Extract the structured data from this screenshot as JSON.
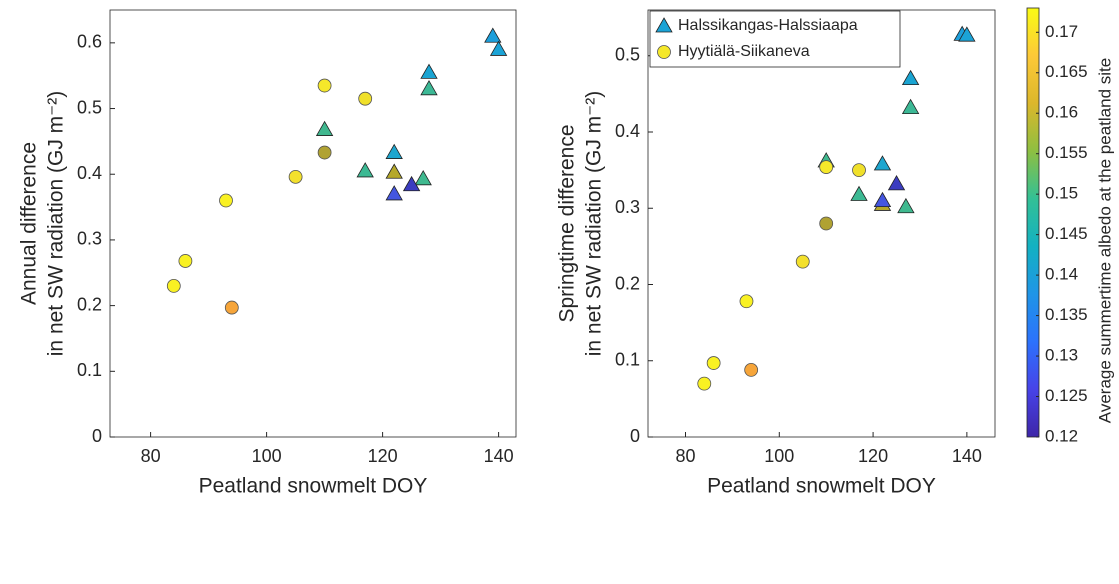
{
  "chart_data": [
    {
      "type": "scatter",
      "xlabel": "Peatland snowmelt DOY",
      "ylabel": [
        "Annual difference",
        "in net SW radiation (GJ m⁻²)"
      ],
      "xlim": [
        73,
        143
      ],
      "xticks": [
        80,
        100,
        120,
        140
      ],
      "ylim": [
        0,
        0.65
      ],
      "yticks": [
        0,
        0.1,
        0.2,
        0.3,
        0.4,
        0.5,
        0.6
      ],
      "series": [
        {
          "marker": "triangle",
          "x": [
            139,
            140,
            128,
            128,
            110,
            122,
            117,
            122,
            127,
            125,
            122
          ],
          "values": [
            0.61,
            0.59,
            0.555,
            0.53,
            0.468,
            0.433,
            0.405,
            0.403,
            0.393,
            0.384,
            0.37
          ],
          "colors": [
            "#1d9fdb",
            "#1ba3d6",
            "#1aa4d2",
            "#3cb895",
            "#40b88f",
            "#1ea6cf",
            "#3cb993",
            "#b5a82a",
            "#3fb98f",
            "#3b3cc0",
            "#4456e0"
          ]
        },
        {
          "marker": "circle",
          "x": [
            110,
            117,
            110,
            105,
            93,
            86,
            84,
            94
          ],
          "values": [
            0.535,
            0.515,
            0.433,
            0.396,
            0.36,
            0.268,
            0.23,
            0.197
          ],
          "colors": [
            "#f5e82a",
            "#f0e02a",
            "#b0a232",
            "#f3e02c",
            "#f9f123",
            "#f9f123",
            "#f9f123",
            "#f6a53a"
          ]
        }
      ]
    },
    {
      "type": "scatter",
      "xlabel": "Peatland snowmelt DOY",
      "ylabel": [
        "Springtime difference",
        "in net SW radiation (GJ m⁻²)"
      ],
      "xlim": [
        72,
        146
      ],
      "xticks": [
        80,
        100,
        120,
        140
      ],
      "ylim": [
        0,
        0.56
      ],
      "yticks": [
        0,
        0.1,
        0.2,
        0.3,
        0.4,
        0.5
      ],
      "legend": "upper left",
      "series": [
        {
          "name": "Halssikangas-Halssiaapa",
          "color": "#1ba3d6",
          "marker": "triangle",
          "x": [
            139,
            140,
            128,
            128,
            110,
            122,
            117,
            122,
            127,
            125,
            122
          ],
          "values": [
            0.528,
            0.527,
            0.47,
            0.432,
            0.362,
            0.358,
            0.318,
            0.305,
            0.302,
            0.332,
            0.31
          ],
          "colors": [
            "#1d9fdb",
            "#1ba3d6",
            "#1aa4d2",
            "#3cb895",
            "#40b88f",
            "#1ea6cf",
            "#3cb993",
            "#b5a82a",
            "#3fb98f",
            "#3b3cc0",
            "#4456e0"
          ]
        },
        {
          "name": "Hyytiälä-Siikaneva",
          "color": "#f5e82a",
          "marker": "circle",
          "x": [
            110,
            117,
            110,
            105,
            93,
            86,
            84,
            94
          ],
          "values": [
            0.354,
            0.35,
            0.28,
            0.23,
            0.178,
            0.097,
            0.07,
            0.088
          ],
          "colors": [
            "#f5e82a",
            "#f0e02a",
            "#b0a232",
            "#f3e02c",
            "#f9f123",
            "#f9f123",
            "#f9f123",
            "#f6a53a"
          ]
        }
      ],
      "colorbar": {
        "label": "Average summertime albedo at the peatland site",
        "lim": [
          0.12,
          0.173
        ],
        "ticks": [
          0.12,
          0.125,
          0.13,
          0.135,
          0.14,
          0.145,
          0.15,
          0.155,
          0.16,
          0.165,
          0.17
        ],
        "colors": [
          "#3e26a8",
          "#4743e8",
          "#2c72fc",
          "#1f95e7",
          "#13b1c2",
          "#33c095",
          "#8ebf41",
          "#dcb72b",
          "#fdc938",
          "#f9fb15"
        ]
      }
    }
  ]
}
